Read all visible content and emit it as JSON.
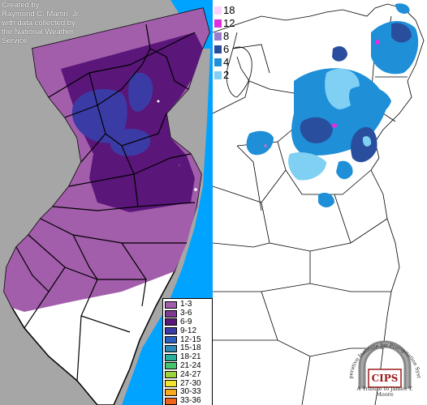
{
  "credit": {
    "lines": [
      "Created by",
      "Raymond C. Martin, Jr.",
      "with data collected by",
      "the National Weather",
      "Service"
    ]
  },
  "legend": {
    "items": [
      {
        "label": "1-3",
        "color": "#a25dab"
      },
      {
        "label": "3-6",
        "color": "#7e3a92"
      },
      {
        "label": "6-9",
        "color": "#5a1679"
      },
      {
        "label": "9-12",
        "color": "#3b3ba6"
      },
      {
        "label": "12-15",
        "color": "#2c5fc0"
      },
      {
        "label": "15-18",
        "color": "#2f8bb5"
      },
      {
        "label": "18-21",
        "color": "#29b09a"
      },
      {
        "label": "21-24",
        "color": "#46c46d"
      },
      {
        "label": "24-27",
        "color": "#9bd43a"
      },
      {
        "label": "27-30",
        "color": "#f0e32c"
      },
      {
        "label": "30-33",
        "color": "#f7a91c"
      },
      {
        "label": "33-36",
        "color": "#f0641a"
      }
    ]
  },
  "scale": {
    "items": [
      {
        "label": "18",
        "color": "#ffd0ff"
      },
      {
        "label": "12",
        "color": "#e02fe0"
      },
      {
        "label": "8",
        "color": "#9a7ccf"
      },
      {
        "label": "6",
        "color": "#2a4e9e"
      },
      {
        "label": "4",
        "color": "#1f8fd8"
      },
      {
        "label": "2",
        "color": "#7fd0f2"
      }
    ]
  },
  "logo": {
    "name": "CIPS",
    "arc_text": "Cooperative Institute for Precipitation Systems",
    "tribute": "A Tribute to James T. Moore"
  }
}
